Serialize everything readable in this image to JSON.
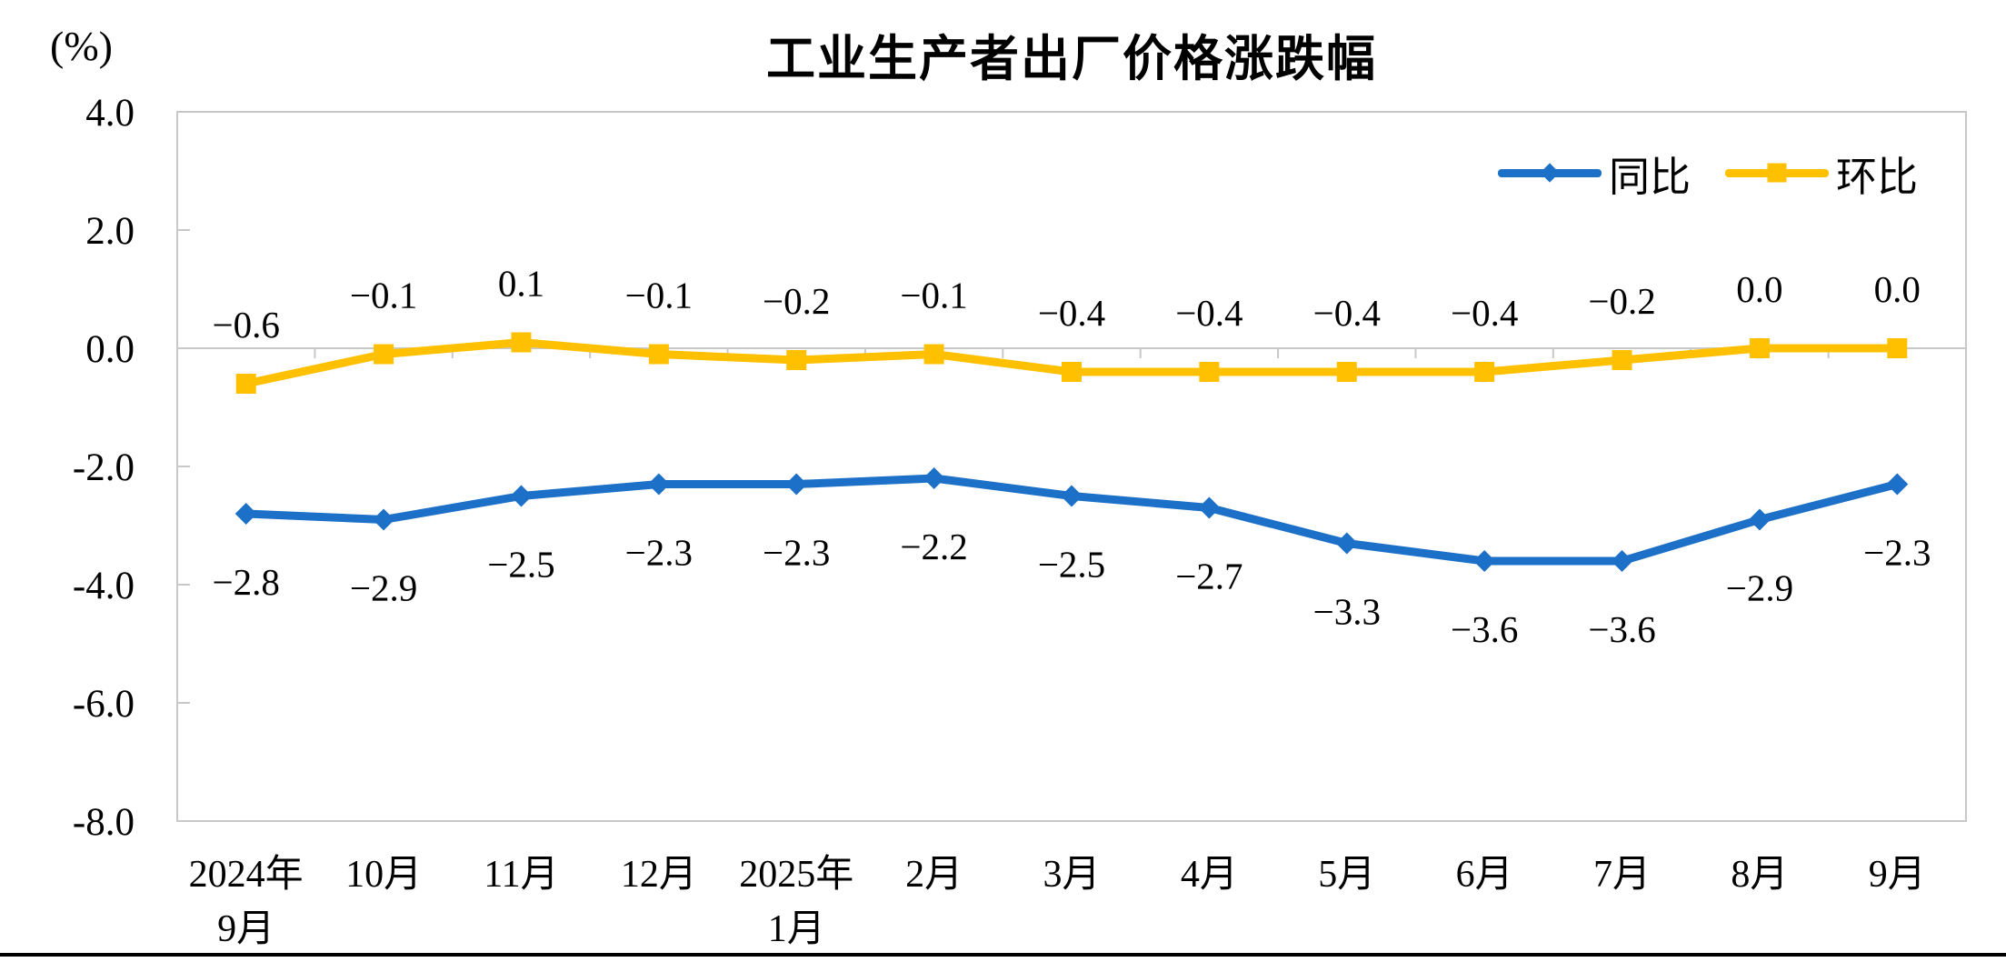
{
  "chart_data": {
    "type": "line",
    "title": "工业生产者出厂价格涨跌幅",
    "unit": "(%)",
    "categories": [
      "2024年\n9月",
      "10月",
      "11月",
      "12月",
      "2025年\n1月",
      "2月",
      "3月",
      "4月",
      "5月",
      "6月",
      "7月",
      "8月",
      "9月"
    ],
    "series": [
      {
        "name": "同比",
        "color": "#1D70C8",
        "marker": "diamond",
        "values": [
          -2.8,
          -2.9,
          -2.5,
          -2.3,
          -2.3,
          -2.2,
          -2.5,
          -2.7,
          -3.3,
          -3.6,
          -3.6,
          -2.9,
          -2.3
        ]
      },
      {
        "name": "环比",
        "color": "#FFC000",
        "marker": "square",
        "values": [
          -0.6,
          -0.1,
          0.1,
          -0.1,
          -0.2,
          -0.1,
          -0.4,
          -0.4,
          -0.4,
          -0.4,
          -0.2,
          0.0,
          0.0
        ]
      }
    ],
    "ylim": [
      -8,
      4
    ],
    "ytick_step": 2,
    "ytick_labels": [
      "4.0",
      "2.0",
      "0.0",
      "-2.0",
      "-4.0",
      "-6.0",
      "-8.0"
    ],
    "legend_position": "top-right",
    "grid": false,
    "axis_color": "#C8C8C8",
    "label_color": "#000000"
  }
}
